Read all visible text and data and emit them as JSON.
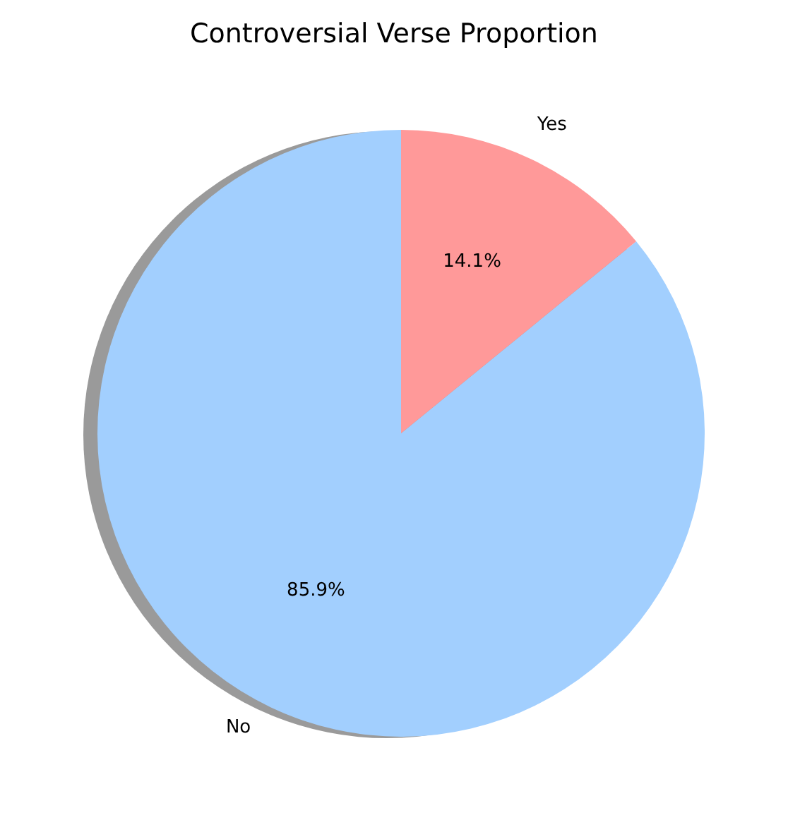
{
  "chart_data": {
    "type": "pie",
    "title": "Controversial Verse Proportion",
    "categories": [
      "No",
      "Yes"
    ],
    "values": [
      85.9,
      14.1
    ],
    "colors": [
      "#a2cffe",
      "#ff9999"
    ],
    "value_labels": [
      "85.9%",
      "14.1%"
    ],
    "legend": false
  }
}
